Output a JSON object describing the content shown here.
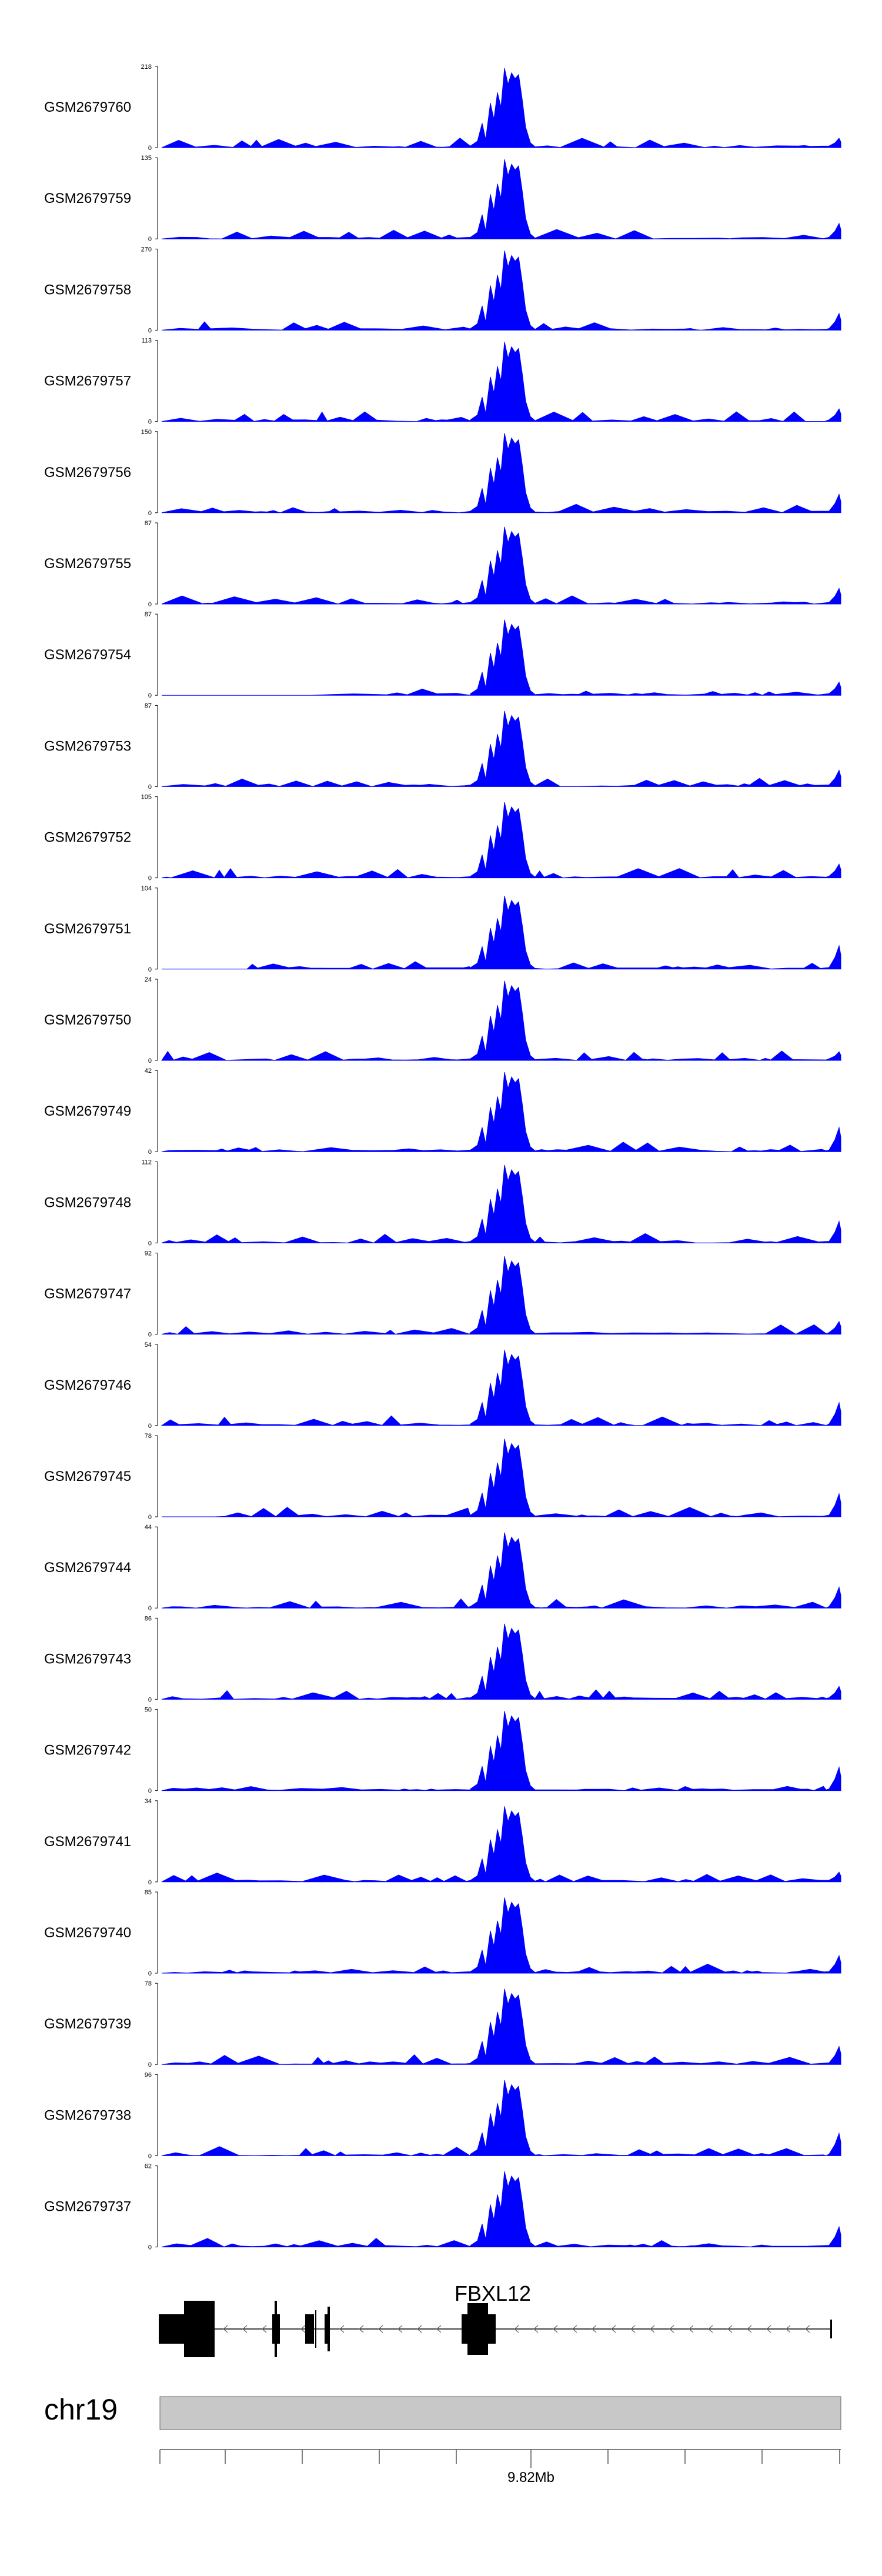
{
  "chart_data": {
    "type": "area",
    "colors": {
      "signal": "#0000ff",
      "gene": "#000000",
      "ideogram": "#c8c8c8"
    },
    "tracks": [
      {
        "name": "GSM2679760",
        "ymax": "218",
        "ymin": "0",
        "peak_scale": 1.0
      },
      {
        "name": "GSM2679759",
        "ymax": "135",
        "ymin": "0",
        "peak_scale": 1.0
      },
      {
        "name": "GSM2679758",
        "ymax": "270",
        "ymin": "0",
        "peak_scale": 1.0
      },
      {
        "name": "GSM2679757",
        "ymax": "113",
        "ymin": "0",
        "peak_scale": 1.0
      },
      {
        "name": "GSM2679756",
        "ymax": "150",
        "ymin": "0",
        "peak_scale": 1.0
      },
      {
        "name": "GSM2679755",
        "ymax": "87",
        "ymin": "0",
        "peak_scale": 0.97
      },
      {
        "name": "GSM2679754",
        "ymax": "87",
        "ymin": "0",
        "peak_scale": 0.95
      },
      {
        "name": "GSM2679753",
        "ymax": "87",
        "ymin": "0",
        "peak_scale": 0.95
      },
      {
        "name": "GSM2679752",
        "ymax": "105",
        "ymin": "0",
        "peak_scale": 0.95
      },
      {
        "name": "GSM2679751",
        "ymax": "104",
        "ymin": "0",
        "peak_scale": 0.92
      },
      {
        "name": "GSM2679750",
        "ymax": "24",
        "ymin": "0",
        "peak_scale": 1.0
      },
      {
        "name": "GSM2679749",
        "ymax": "42",
        "ymin": "0",
        "peak_scale": 1.0
      },
      {
        "name": "GSM2679748",
        "ymax": "112",
        "ymin": "0",
        "peak_scale": 0.98
      },
      {
        "name": "GSM2679747",
        "ymax": "92",
        "ymin": "0",
        "peak_scale": 0.98
      },
      {
        "name": "GSM2679746",
        "ymax": "54",
        "ymin": "0",
        "peak_scale": 0.95
      },
      {
        "name": "GSM2679745",
        "ymax": "78",
        "ymin": "0",
        "peak_scale": 0.98
      },
      {
        "name": "GSM2679744",
        "ymax": "44",
        "ymin": "0",
        "peak_scale": 0.95
      },
      {
        "name": "GSM2679743",
        "ymax": "86",
        "ymin": "0",
        "peak_scale": 0.95
      },
      {
        "name": "GSM2679742",
        "ymax": "50",
        "ymin": "0",
        "peak_scale": 1.0
      },
      {
        "name": "GSM2679741",
        "ymax": "34",
        "ymin": "0",
        "peak_scale": 0.95
      },
      {
        "name": "GSM2679740",
        "ymax": "85",
        "ymin": "0",
        "peak_scale": 0.95
      },
      {
        "name": "GSM2679739",
        "ymax": "78",
        "ymin": "0",
        "peak_scale": 0.95
      },
      {
        "name": "GSM2679738",
        "ymax": "96",
        "ymin": "0",
        "peak_scale": 0.95
      },
      {
        "name": "GSM2679737",
        "ymax": "62",
        "ymin": "0",
        "peak_scale": 0.95
      }
    ],
    "gene": {
      "name": "FBXL12",
      "strand": "-"
    },
    "chromosome": {
      "name": "chr19"
    },
    "axis": {
      "label": "9.82Mb",
      "ticks": 10
    }
  }
}
